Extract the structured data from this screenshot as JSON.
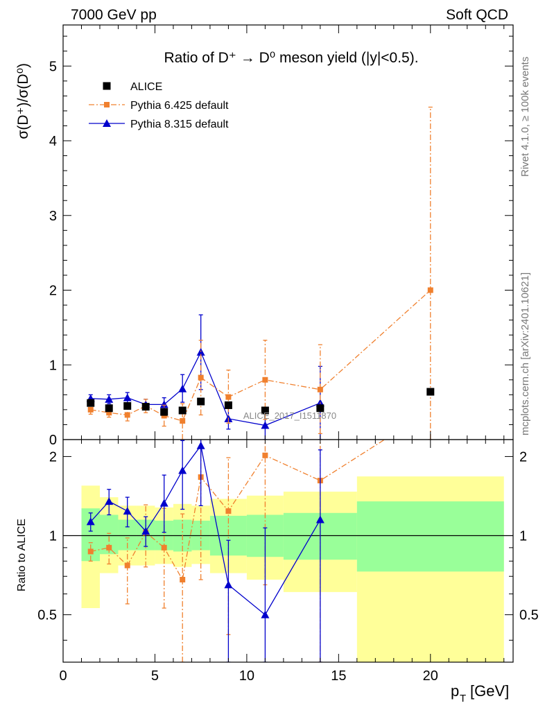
{
  "header": {
    "left": "7000 GeV pp",
    "right": "Soft QCD"
  },
  "side_labels": {
    "rivet": "Rivet 4.1.0, ≥ 100k events",
    "mcplots": "mcplots.cern.ch [arXiv:2401.10621]"
  },
  "chart_data": [
    {
      "type": "scatter",
      "panel": "main",
      "title": "Ratio of D⁺ → D⁰ meson yield (|y|<0.5).",
      "ylabel": "σ(D⁺)/σ(D⁰)",
      "xlabel": "",
      "xlim": [
        0,
        24.5
      ],
      "ylim": [
        0,
        5.55
      ],
      "yticks": [
        0,
        1,
        2,
        3,
        4,
        5
      ],
      "ytick_labels": [
        "0",
        "1",
        "2",
        "3",
        "4",
        "5"
      ],
      "watermark": "ALICE_2017_I1511870",
      "legend_position": "top-left",
      "series": [
        {
          "name": "ALICE",
          "style": "data",
          "color": "#000000",
          "x": [
            1.5,
            2.5,
            3.5,
            4.5,
            5.5,
            6.5,
            7.5,
            9,
            11,
            14,
            20
          ],
          "y": [
            0.49,
            0.42,
            0.45,
            0.44,
            0.37,
            0.39,
            0.51,
            0.46,
            0.39,
            0.42,
            0.64
          ],
          "yerr": [
            0.03,
            0.03,
            0.03,
            0.03,
            0.03,
            0.03,
            0.04,
            0.04,
            0.04,
            0.05,
            0.05
          ]
        },
        {
          "name": "Pythia 6.425 default",
          "style": "dashdot",
          "color": "#f0802e",
          "x": [
            1.5,
            2.5,
            3.5,
            4.5,
            5.5,
            6.5,
            7.5,
            9,
            11,
            14,
            20
          ],
          "y": [
            0.4,
            0.36,
            0.33,
            0.45,
            0.32,
            0.25,
            0.83,
            0.57,
            0.8,
            0.67,
            2.0
          ],
          "ylow": [
            0.34,
            0.3,
            0.25,
            0.36,
            0.18,
            0.0,
            0.33,
            0.22,
            0.27,
            0.08,
            0.0
          ],
          "yhigh": [
            0.46,
            0.42,
            0.43,
            0.54,
            0.46,
            0.48,
            1.33,
            0.93,
            1.33,
            1.27,
            4.45
          ]
        },
        {
          "name": "Pythia 8.315 default",
          "style": "solid",
          "color": "#0000cc",
          "x": [
            1.5,
            2.5,
            3.5,
            4.5,
            5.5,
            6.5,
            7.5,
            9,
            11,
            14
          ],
          "y": [
            0.55,
            0.54,
            0.56,
            0.47,
            0.47,
            0.68,
            1.17,
            0.28,
            0.19,
            0.49
          ],
          "ylow": [
            0.5,
            0.48,
            0.49,
            0.4,
            0.38,
            0.5,
            0.67,
            0.14,
            0.0,
            0.0
          ],
          "yhigh": [
            0.6,
            0.6,
            0.63,
            0.54,
            0.56,
            0.87,
            1.67,
            0.42,
            0.38,
            0.98
          ]
        }
      ]
    },
    {
      "type": "scatter",
      "panel": "ratio",
      "ylabel": "Ratio to ALICE",
      "xlabel": "p_T [GeV]",
      "xlabel_main": "p",
      "xlabel_sub": "T",
      "xlabel_unit": "[GeV]",
      "xlim": [
        0,
        24.5
      ],
      "ylim": [
        0.33,
        2.32
      ],
      "yscale": "log",
      "xticks": [
        0,
        5,
        10,
        15,
        20
      ],
      "xtick_labels": [
        "0",
        "5",
        "10",
        "15",
        "20"
      ],
      "yticks": [
        0.5,
        1,
        2
      ],
      "ytick_labels": [
        "0.5",
        "1",
        "2"
      ],
      "bands": [
        {
          "x0": 1,
          "x1": 2,
          "inner": [
            0.8,
            1.27
          ],
          "outer": [
            0.53,
            1.55
          ]
        },
        {
          "x0": 2,
          "x1": 3,
          "inner": [
            0.85,
            1.2
          ],
          "outer": [
            0.72,
            1.4
          ]
        },
        {
          "x0": 3,
          "x1": 4,
          "inner": [
            0.88,
            1.15
          ],
          "outer": [
            0.77,
            1.3
          ]
        },
        {
          "x0": 4,
          "x1": 5,
          "inner": [
            0.88,
            1.15
          ],
          "outer": [
            0.77,
            1.3
          ]
        },
        {
          "x0": 5,
          "x1": 6,
          "inner": [
            0.88,
            1.14
          ],
          "outer": [
            0.78,
            1.28
          ]
        },
        {
          "x0": 6,
          "x1": 7,
          "inner": [
            0.87,
            1.15
          ],
          "outer": [
            0.76,
            1.32
          ]
        },
        {
          "x0": 7,
          "x1": 8,
          "inner": [
            0.88,
            1.14
          ],
          "outer": [
            0.78,
            1.3
          ]
        },
        {
          "x0": 8,
          "x1": 10,
          "inner": [
            0.84,
            1.19
          ],
          "outer": [
            0.72,
            1.38
          ]
        },
        {
          "x0": 10,
          "x1": 12,
          "inner": [
            0.83,
            1.2
          ],
          "outer": [
            0.68,
            1.42
          ]
        },
        {
          "x0": 12,
          "x1": 16,
          "inner": [
            0.81,
            1.22
          ],
          "outer": [
            0.61,
            1.47
          ]
        },
        {
          "x0": 16,
          "x1": 24,
          "inner": [
            0.73,
            1.35
          ],
          "outer": [
            0.33,
            1.68
          ]
        }
      ],
      "series": [
        {
          "name": "Pythia 6.425 default",
          "style": "dashdot",
          "color": "#f0802e",
          "x": [
            1.5,
            2.5,
            3.5,
            4.5,
            5.5,
            6.5,
            7.5,
            9,
            11,
            14,
            17.5
          ],
          "y": [
            0.87,
            0.9,
            0.77,
            1.03,
            0.9,
            0.68,
            1.67,
            1.24,
            2.02,
            1.62,
            2.32
          ],
          "ylow": [
            0.8,
            0.78,
            0.55,
            0.76,
            0.53,
            0.33,
            0.68,
            0.42,
            0.65,
            0.33,
            2.32
          ],
          "yhigh": [
            0.94,
            1.02,
            0.98,
            1.31,
            1.27,
            1.21,
            2.62,
            1.98,
            3.2,
            3.0,
            2.32
          ],
          "show_last_marker": false
        },
        {
          "name": "Pythia 8.315 default",
          "style": "solid",
          "color": "#0000cc",
          "x": [
            1.5,
            2.5,
            3.5,
            4.5,
            5.5,
            6.5,
            7.5,
            9,
            11,
            14
          ],
          "y": [
            1.13,
            1.35,
            1.24,
            1.04,
            1.33,
            1.77,
            2.2,
            0.65,
            0.5,
            1.15
          ],
          "ylow": [
            1.04,
            1.2,
            1.08,
            0.91,
            1.03,
            1.26,
            1.3,
            0.33,
            0.33,
            0.33
          ],
          "yhigh": [
            1.22,
            1.5,
            1.4,
            1.18,
            1.7,
            2.3,
            3.0,
            0.96,
            1.07,
            2.12
          ]
        }
      ]
    }
  ]
}
